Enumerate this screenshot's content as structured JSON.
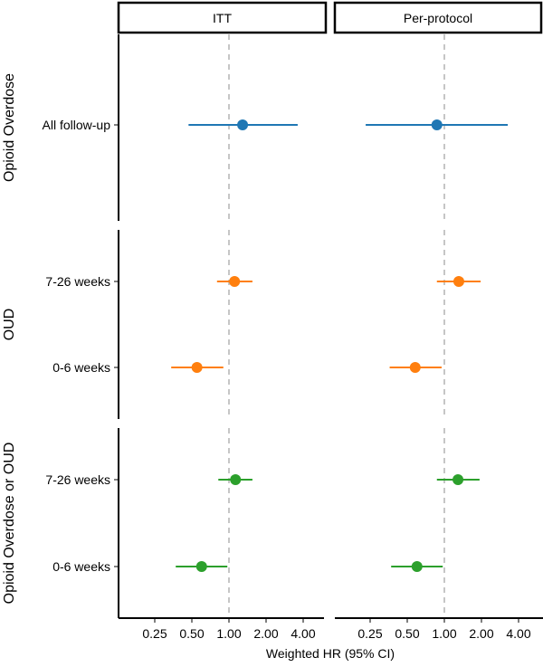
{
  "chart_data": {
    "type": "forest",
    "xlabel": "Weighted HR (95% CI)",
    "xscale": "log2",
    "xlim": [
      0.125,
      6.0
    ],
    "xticks": [
      0.25,
      0.5,
      1.0,
      2.0,
      4.0
    ],
    "xtick_labels": [
      "0.25",
      "0.50",
      "1.00",
      "2.00",
      "4.00"
    ],
    "reference_line": 1.0,
    "columns": [
      "ITT",
      "Per-protocol"
    ],
    "rows": [
      {
        "label": "Opioid Overdose",
        "color": "#1f77b4",
        "items": [
          "All follow-up"
        ]
      },
      {
        "label": "OUD",
        "color": "#ff7f0e",
        "items": [
          "7-26 weeks",
          "0-6 weeks"
        ]
      },
      {
        "label": "Opioid Overdose or OUD",
        "color": "#2ca02c",
        "items": [
          "7-26 weeks",
          "0-6 weeks"
        ]
      }
    ],
    "series": [
      {
        "row": 0,
        "item": "All follow-up",
        "column": "ITT",
        "hr": 1.29,
        "lower": 0.47,
        "upper": 3.61
      },
      {
        "row": 0,
        "item": "All follow-up",
        "column": "Per-protocol",
        "hr": 0.87,
        "lower": 0.23,
        "upper": 3.27
      },
      {
        "row": 1,
        "item": "7-26 weeks",
        "column": "ITT",
        "hr": 1.11,
        "lower": 0.8,
        "upper": 1.55
      },
      {
        "row": 1,
        "item": "7-26 weeks",
        "column": "Per-protocol",
        "hr": 1.31,
        "lower": 0.87,
        "upper": 1.97
      },
      {
        "row": 1,
        "item": "0-6 weeks",
        "column": "ITT",
        "hr": 0.55,
        "lower": 0.34,
        "upper": 0.9
      },
      {
        "row": 1,
        "item": "0-6 weeks",
        "column": "Per-protocol",
        "hr": 0.58,
        "lower": 0.36,
        "upper": 0.95
      },
      {
        "row": 2,
        "item": "7-26 weeks",
        "column": "ITT",
        "hr": 1.13,
        "lower": 0.82,
        "upper": 1.55
      },
      {
        "row": 2,
        "item": "7-26 weeks",
        "column": "Per-protocol",
        "hr": 1.29,
        "lower": 0.87,
        "upper": 1.93
      },
      {
        "row": 2,
        "item": "0-6 weeks",
        "column": "ITT",
        "hr": 0.6,
        "lower": 0.37,
        "upper": 0.97
      },
      {
        "row": 2,
        "item": "0-6 weeks",
        "column": "Per-protocol",
        "hr": 0.6,
        "lower": 0.37,
        "upper": 0.97
      }
    ]
  }
}
